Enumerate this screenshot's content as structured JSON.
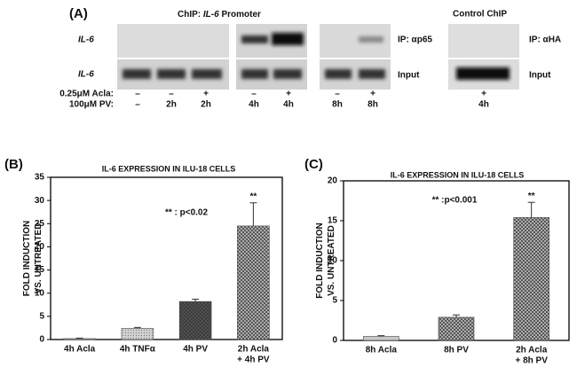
{
  "panel_a": {
    "label": "(A)",
    "title_prefix": "ChIP: ",
    "title_gene": "IL-6",
    "title_suffix": " Promoter",
    "control_title": "Control ChIP",
    "row_labels": [
      "IL-6",
      "IL-6"
    ],
    "ip_p65": "IP: αp65",
    "ip_ha": "IP: αHA",
    "input": "Input",
    "acla_label": "0.25μM Acla:",
    "pv_label": "100μM PV:",
    "acla": [
      "–",
      "–",
      "+",
      "–",
      "+",
      "–",
      "+",
      "+"
    ],
    "pv": [
      "–",
      "2h",
      "2h",
      "4h",
      "4h",
      "8h",
      "8h",
      "4h"
    ]
  },
  "chart_data": [
    {
      "type": "bar",
      "panel": "(B)",
      "title": "IL-6 EXPRESSION IN ILU-18 CELLS",
      "ylabel": [
        "FOLD INDUCTION",
        "VS. UNTREATED"
      ],
      "categories": [
        [
          "4h Acla"
        ],
        [
          "4h TNFα"
        ],
        [
          "4h PV"
        ],
        [
          "2h Acla",
          "+ 4h PV"
        ]
      ],
      "values": [
        0.2,
        2.4,
        8.2,
        24.5
      ],
      "errors": [
        0.1,
        0.2,
        0.5,
        5.0
      ],
      "colors": [
        "#c8c8c8",
        "#d0d0d0",
        "#555555",
        "#bdbdbd"
      ],
      "patterns": [
        "solid",
        "dots",
        "crosshatch",
        "crosshatch"
      ],
      "ylim": [
        0,
        35
      ],
      "yticks": [
        0,
        5,
        10,
        15,
        20,
        25,
        30,
        35
      ],
      "annotation": "** : p<0.02",
      "significance": [
        null,
        null,
        null,
        "**"
      ]
    },
    {
      "type": "bar",
      "panel": "(C)",
      "title": "IL-6 EXPRESSION IN ILU-18 CELLS",
      "ylabel": [
        "FOLD INDUCTION",
        "VS. UNTREATED"
      ],
      "categories": [
        [
          "8h Acla"
        ],
        [
          "8h PV"
        ],
        [
          "2h Acla",
          "+ 8h PV"
        ]
      ],
      "values": [
        0.5,
        2.9,
        15.4
      ],
      "errors": [
        0.1,
        0.3,
        1.9
      ],
      "colors": [
        "#c8c8c8",
        "#bdbdbd",
        "#bdbdbd"
      ],
      "patterns": [
        "solid",
        "crosshatch",
        "crosshatch"
      ],
      "ylim": [
        0,
        20
      ],
      "yticks": [
        0,
        5,
        10,
        15,
        20
      ],
      "annotation": "** :p<0.001",
      "significance": [
        null,
        null,
        "**"
      ]
    }
  ]
}
